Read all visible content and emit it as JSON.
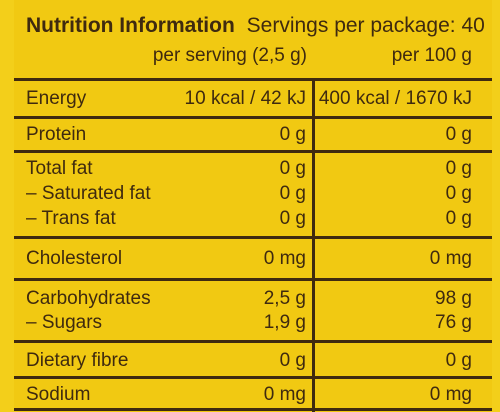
{
  "header": {
    "title": "Nutrition Information",
    "servings": "Servings per package: 40",
    "per_serving_label": "per serving (2,5 g)",
    "per_100_label": "per 100 g"
  },
  "rows": {
    "energy": {
      "label": "Energy",
      "per_serving": "10 kcal / 42 kJ",
      "per_100": "400 kcal / 1670 kJ"
    },
    "protein": {
      "label": "Protein",
      "per_serving": "0 g",
      "per_100": "0 g"
    },
    "total_fat": {
      "label": "Total fat",
      "per_serving": "0 g",
      "per_100": "0 g"
    },
    "saturated_fat": {
      "label": "– Saturated fat",
      "per_serving": "0 g",
      "per_100": "0 g"
    },
    "trans_fat": {
      "label": "– Trans fat",
      "per_serving": "0 g",
      "per_100": "0 g"
    },
    "cholesterol": {
      "label": "Cholesterol",
      "per_serving": "0 mg",
      "per_100": "0 mg"
    },
    "carbohydrates": {
      "label": "Carbohydrates",
      "per_serving": "2,5 g",
      "per_100": "98 g"
    },
    "sugars": {
      "label": "– Sugars",
      "per_serving": "1,9 g",
      "per_100": "76 g"
    },
    "dietary_fibre": {
      "label": "Dietary fibre",
      "per_serving": "0 g",
      "per_100": "0 g"
    },
    "sodium": {
      "label": "Sodium",
      "per_serving": "0 mg",
      "per_100": "0 mg"
    }
  },
  "colors": {
    "background": "#f1c912",
    "text_and_rules": "#3f2a0f"
  }
}
